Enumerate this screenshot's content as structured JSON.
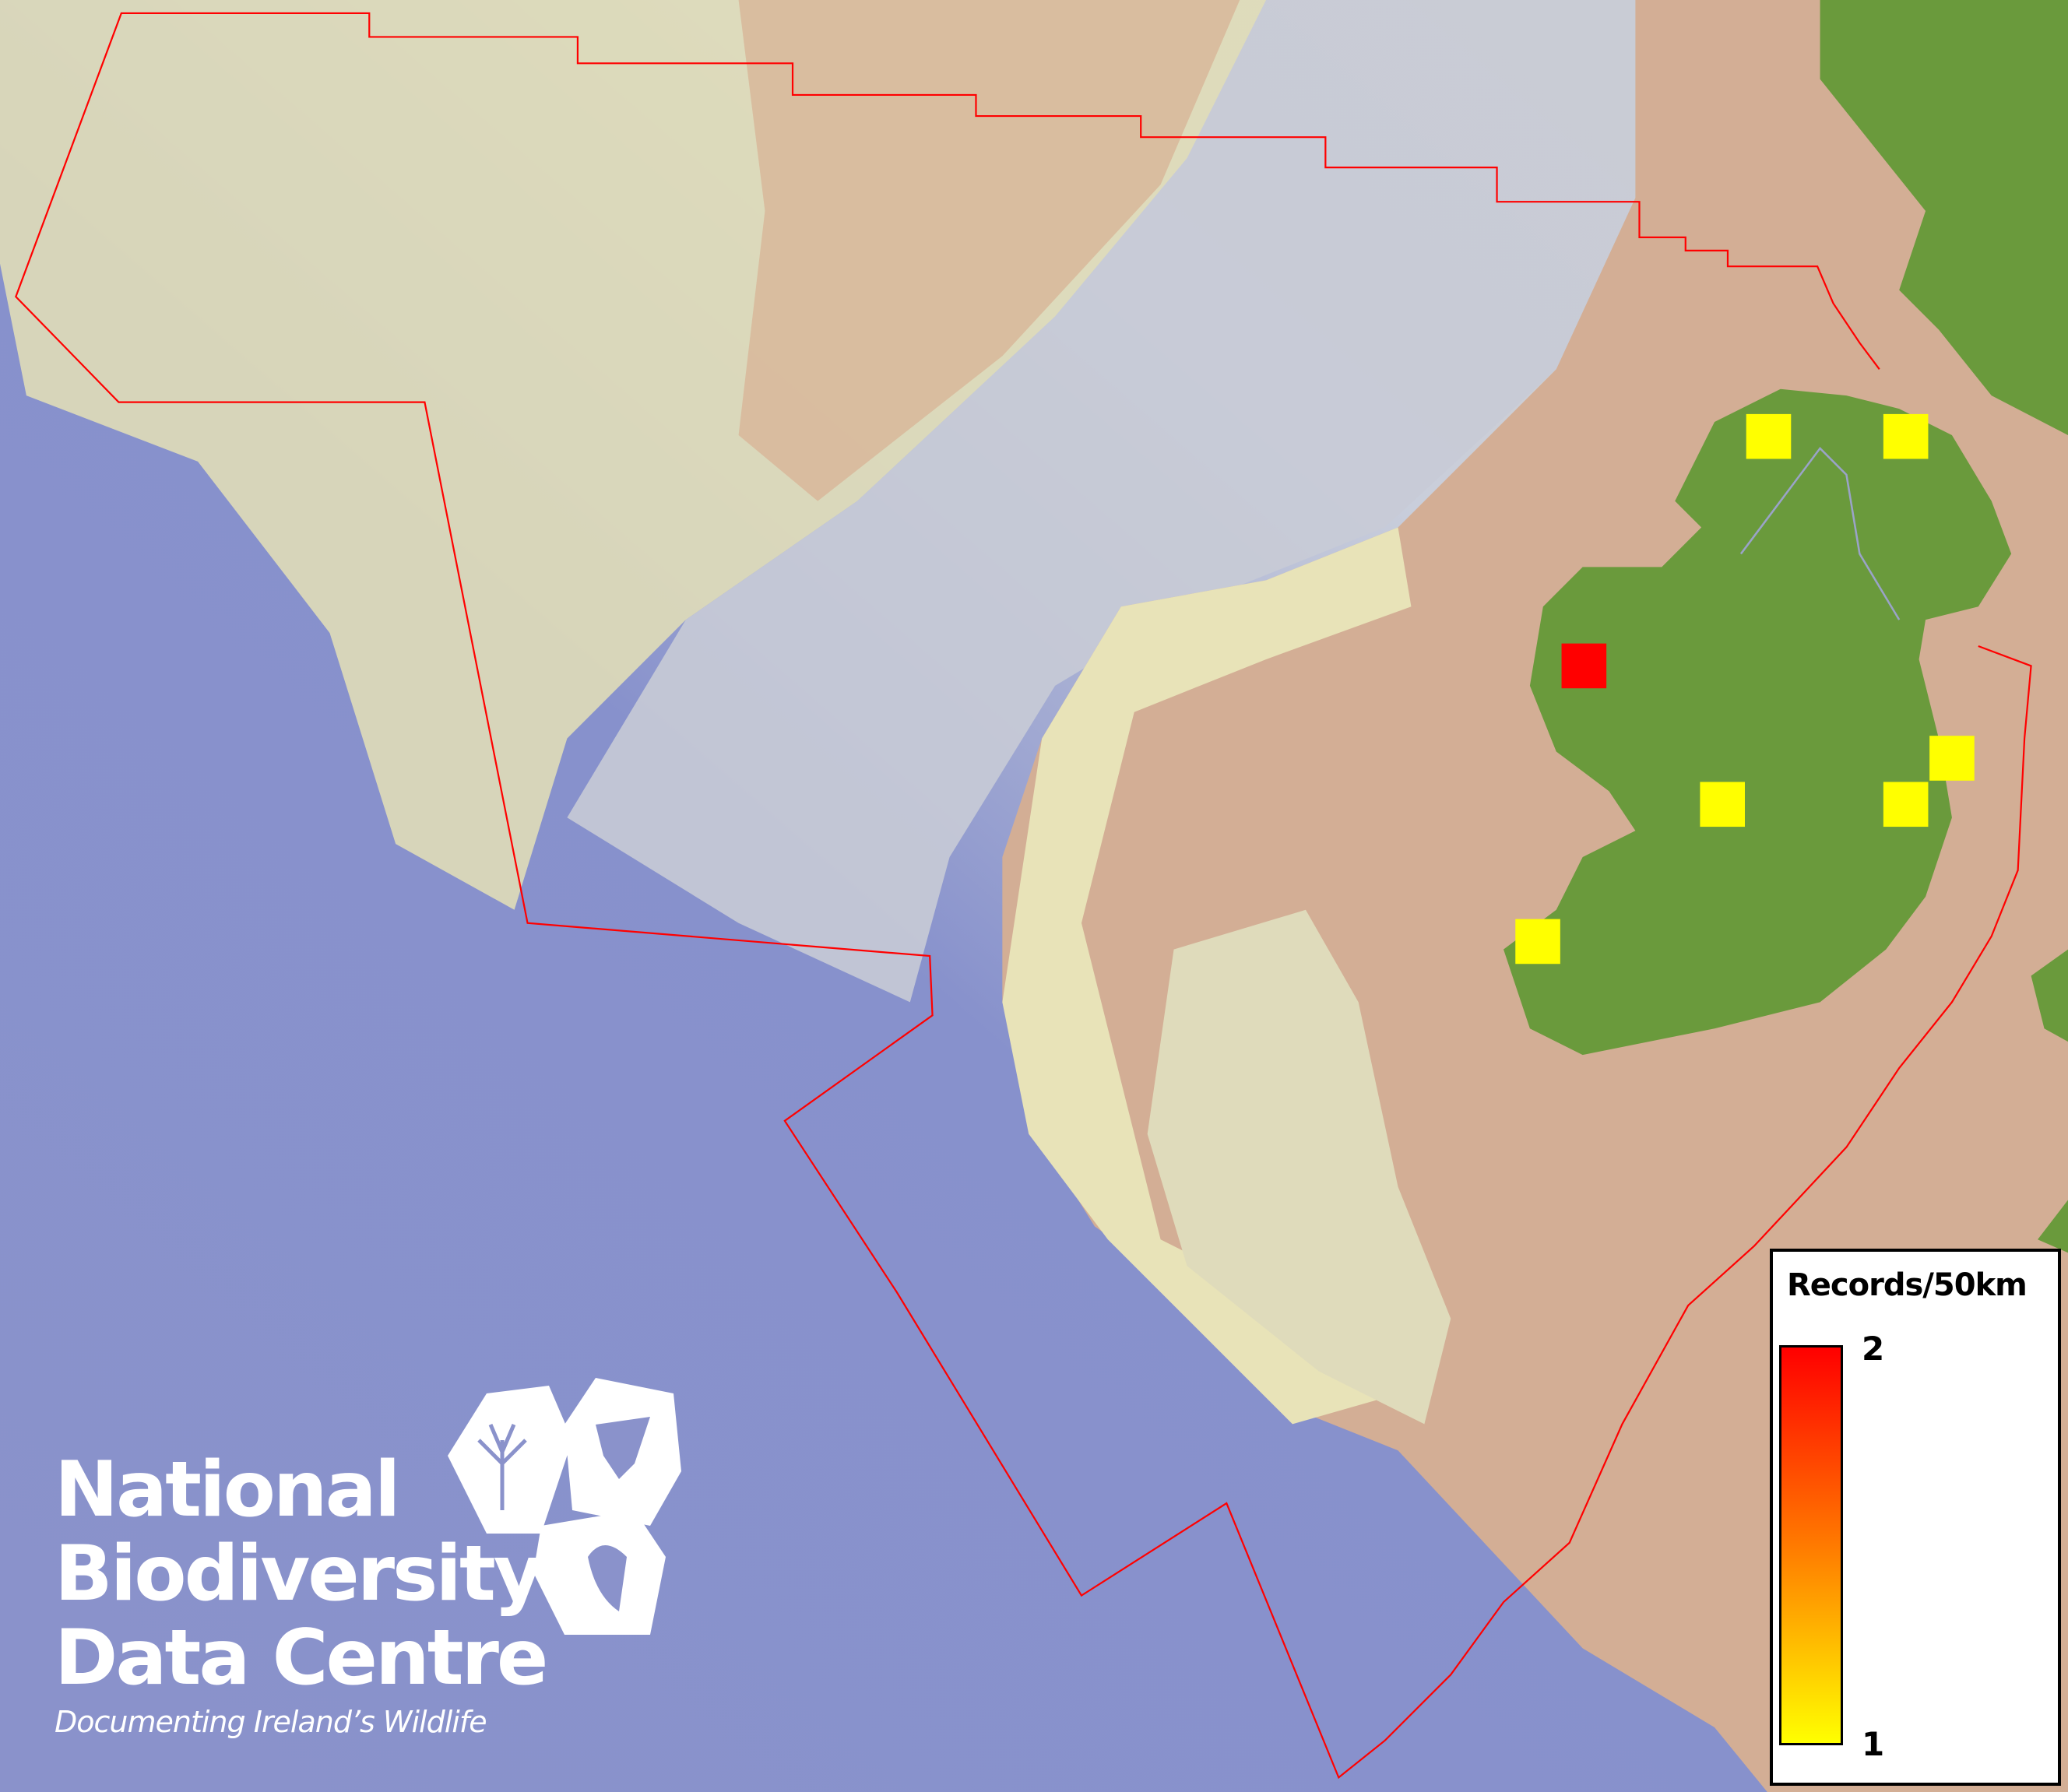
{
  "legend": {
    "title": "Records/50km",
    "max_label": "2",
    "min_label": "1",
    "color_low": "#ffff00",
    "color_high": "#ff0000"
  },
  "logo": {
    "line1": "National",
    "line2": "Biodiversity",
    "line3": "Data Centre",
    "tagline": "Documenting Ireland’s Wildlife"
  },
  "records": [
    {
      "value": 1,
      "color": "#ffff00"
    },
    {
      "value": 1,
      "color": "#ffff00"
    },
    {
      "value": 2,
      "color": "#ff0000"
    },
    {
      "value": 1,
      "color": "#ffff00"
    },
    {
      "value": 1,
      "color": "#ffff00"
    },
    {
      "value": 1,
      "color": "#ffff00"
    },
    {
      "value": 1,
      "color": "#ffff00"
    }
  ],
  "colors": {
    "boundary": "#ff0000",
    "land": "#6a9a3c",
    "deep_ocean": "#7f8ac8",
    "shelf": "#e3dfb4",
    "shallow": "#d4ae96"
  }
}
